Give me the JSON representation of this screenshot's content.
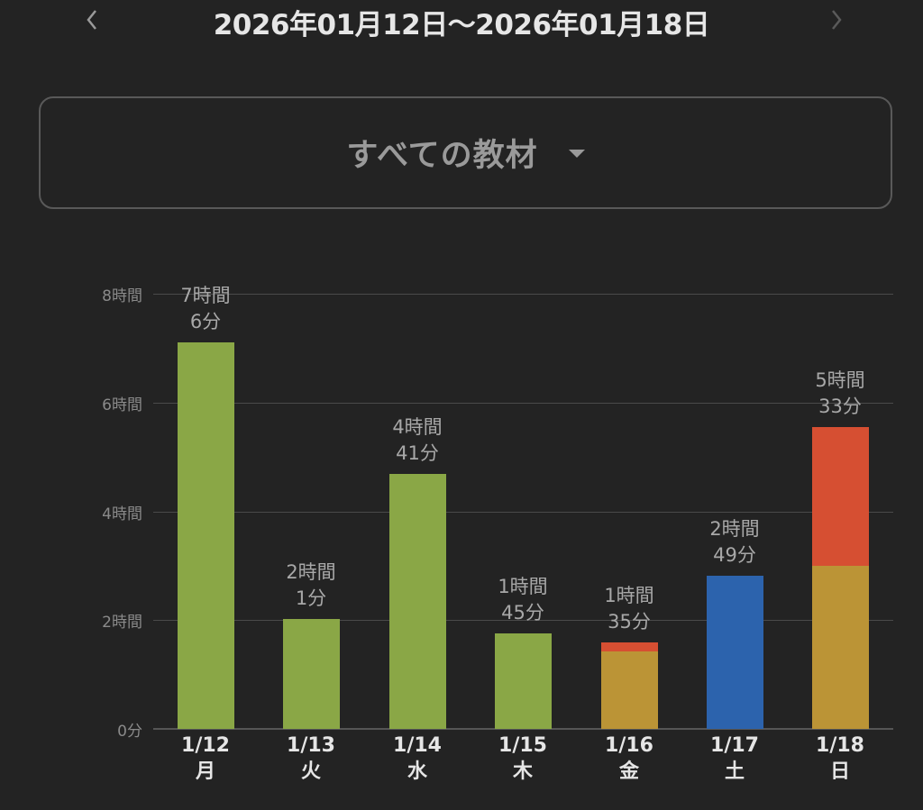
{
  "header": {
    "title": "2026年01月12日〜2026年01月18日",
    "prev_icon": "chevron-left-icon",
    "next_icon": "chevron-right-icon"
  },
  "selector": {
    "label": "すべての教材",
    "icon": "caret-down-icon"
  },
  "colors": {
    "background": "#232323",
    "green": "#8aa746",
    "gold": "#bb9436",
    "red": "#d64f32",
    "blue": "#2c63ad",
    "gridline": "#4a4a4a"
  },
  "chart_data": {
    "type": "bar",
    "stacked": true,
    "title": "",
    "xlabel": "",
    "ylabel": "",
    "ylim_minutes": [
      0,
      480
    ],
    "y_ticks": [
      "0分",
      "2時間",
      "4時間",
      "6時間",
      "8時間"
    ],
    "y_tick_minutes": [
      0,
      120,
      240,
      360,
      480
    ],
    "grid": true,
    "legend": "none",
    "categories": [
      "1/12",
      "1/13",
      "1/14",
      "1/15",
      "1/16",
      "1/17",
      "1/18"
    ],
    "weekdays": [
      "月",
      "火",
      "水",
      "木",
      "金",
      "土",
      "日"
    ],
    "totals_label": [
      "7時間\n6分",
      "2時間\n1分",
      "4時間\n41分",
      "1時間\n45分",
      "1時間\n35分",
      "2時間\n49分",
      "5時間\n33分"
    ],
    "totals_label_lines": [
      [
        "7時間",
        "6分"
      ],
      [
        "2時間",
        "1分"
      ],
      [
        "4時間",
        "41分"
      ],
      [
        "1時間",
        "45分"
      ],
      [
        "1時間",
        "35分"
      ],
      [
        "2時間",
        "49分"
      ],
      [
        "5時間",
        "33分"
      ]
    ],
    "totals_minutes": [
      426,
      121,
      281,
      105,
      95,
      169,
      333
    ],
    "series": [
      {
        "name": "green",
        "color": "#8aa746",
        "values": [
          426,
          121,
          281,
          105,
          0,
          0,
          0
        ]
      },
      {
        "name": "gold",
        "color": "#bb9436",
        "values": [
          0,
          0,
          0,
          0,
          85,
          0,
          180
        ]
      },
      {
        "name": "red",
        "color": "#d64f32",
        "values": [
          0,
          0,
          0,
          0,
          10,
          0,
          153
        ]
      },
      {
        "name": "blue",
        "color": "#2c63ad",
        "values": [
          0,
          0,
          0,
          0,
          0,
          169,
          0
        ]
      }
    ]
  }
}
